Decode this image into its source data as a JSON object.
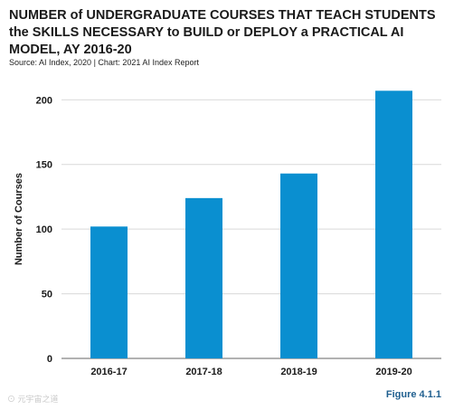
{
  "title": "NUMBER of UNDERGRADUATE COURSES THAT TEACH STUDENTS the SKILLS NECESSARY to BUILD or DEPLOY a PRACTICAL AI MODEL, AY 2016-20",
  "source": "Source: AI Index, 2020 | Chart: 2021 AI Index Report",
  "figure_label": "Figure 4.1.1",
  "watermark": "⊙ 元宇宙之道",
  "colors": {
    "bar": "#0a8fd0",
    "grid": "#d9d9d9",
    "axis": "#666666"
  },
  "chart_data": {
    "type": "bar",
    "title": "NUMBER of UNDERGRADUATE COURSES THAT TEACH STUDENTS the SKILLS NECESSARY to BUILD or DEPLOY a PRACTICAL AI MODEL, AY 2016-20",
    "xlabel": "",
    "ylabel": "Number of Courses",
    "categories": [
      "2016-17",
      "2017-18",
      "2018-19",
      "2019-20"
    ],
    "values": [
      102,
      124,
      143,
      207
    ],
    "ylim": [
      0,
      210
    ],
    "yticks": [
      0,
      50,
      100,
      150,
      200
    ],
    "grid": true
  }
}
